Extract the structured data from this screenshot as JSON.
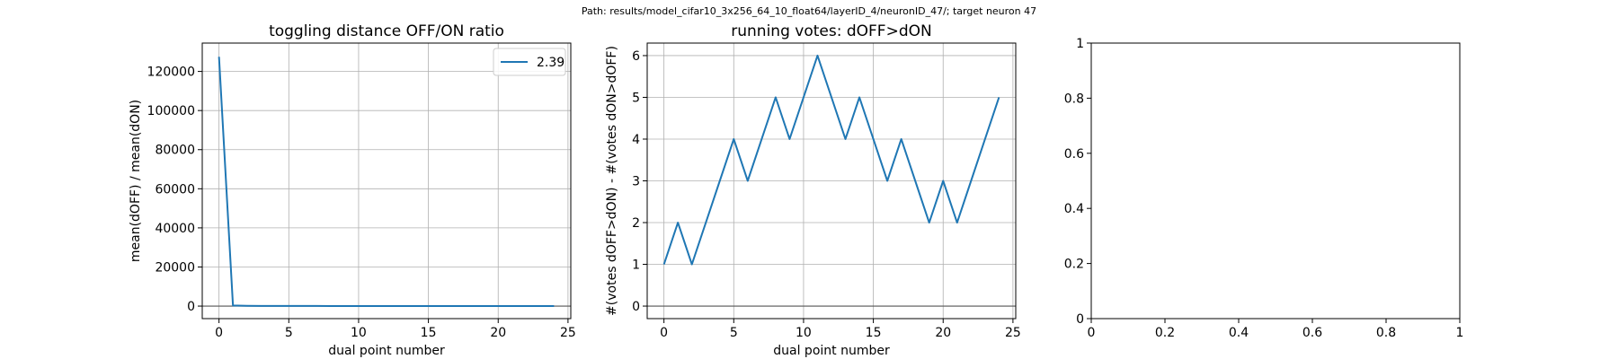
{
  "suptitle": "Path: results/model_cifar10_3x256_64_10_float64/layerID_4/neuronID_47/; target neuron 47",
  "chart_data": [
    {
      "type": "line",
      "title": "toggling distance OFF/ON ratio",
      "xlabel": "dual point number",
      "ylabel": "mean(dOFF) / mean(dON)",
      "xlim": [
        -1.2,
        25.2
      ],
      "ylim": [
        -6400,
        134500
      ],
      "xticks": [
        0,
        5,
        10,
        15,
        20,
        25
      ],
      "yticks": [
        0,
        20000,
        40000,
        60000,
        80000,
        100000,
        120000
      ],
      "grid": true,
      "hline": 0,
      "legend": {
        "position": "top-right",
        "entries": [
          "2.39"
        ]
      },
      "series": [
        {
          "name": "2.39",
          "color": "#1f77b4",
          "x": [
            0,
            1,
            2,
            3,
            4,
            5,
            6,
            7,
            8,
            9,
            10,
            11,
            12,
            13,
            14,
            15,
            16,
            17,
            18,
            19,
            20,
            21,
            22,
            23,
            24
          ],
          "y": [
            127500,
            300,
            120,
            100,
            90,
            80,
            70,
            60,
            50,
            40,
            30,
            20,
            15,
            10,
            8,
            6,
            5,
            4,
            4,
            3,
            3,
            3,
            3,
            2,
            2.39
          ]
        }
      ]
    },
    {
      "type": "line",
      "title": "running votes: dOFF>dON",
      "xlabel": "dual point number",
      "ylabel": "#(votes dOFF>dON) - #(votes dON>dOFF)",
      "xlim": [
        -1.2,
        25.2
      ],
      "ylim": [
        -0.3,
        6.3
      ],
      "xticks": [
        0,
        5,
        10,
        15,
        20,
        25
      ],
      "yticks": [
        0,
        1,
        2,
        3,
        4,
        5,
        6
      ],
      "grid": true,
      "hline": 0,
      "series": [
        {
          "color": "#1f77b4",
          "x": [
            0,
            1,
            2,
            3,
            4,
            5,
            6,
            7,
            8,
            9,
            10,
            11,
            12,
            13,
            14,
            15,
            16,
            17,
            18,
            19,
            20,
            21,
            22,
            23,
            24
          ],
          "y": [
            1,
            2,
            1,
            2,
            3,
            4,
            3,
            4,
            5,
            4,
            5,
            6,
            5,
            4,
            5,
            4,
            3,
            4,
            3,
            2,
            3,
            2,
            3,
            4,
            5
          ]
        }
      ]
    },
    {
      "type": "line",
      "title": "",
      "xlabel": "",
      "ylabel": "",
      "xlim": [
        0,
        1
      ],
      "ylim": [
        0,
        1
      ],
      "xticks": [
        0,
        0.2,
        0.4,
        0.6,
        0.8,
        1
      ],
      "yticks": [
        0,
        0.2,
        0.4,
        0.6,
        0.8,
        1
      ],
      "grid": false,
      "series": []
    }
  ]
}
